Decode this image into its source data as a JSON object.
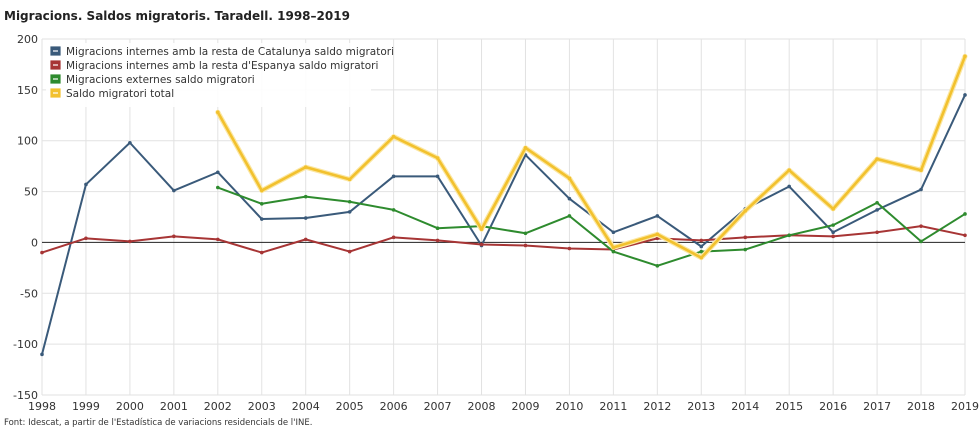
{
  "title": "Migracions. Saldos migratoris. Taradell. 1998–2019",
  "source": "Font: Idescat, a partir de l'Estadística de variacions residencials de l'INE.",
  "chart_data": {
    "type": "line",
    "title": "Migracions. Saldos migratoris. Taradell. 1998–2019",
    "x": [
      1998,
      1999,
      2000,
      2001,
      2002,
      2003,
      2004,
      2005,
      2006,
      2007,
      2008,
      2009,
      2010,
      2011,
      2012,
      2013,
      2014,
      2015,
      2016,
      2017,
      2018,
      2019
    ],
    "ylim": [
      -150,
      200
    ],
    "yticks": [
      -150,
      -100,
      -50,
      0,
      50,
      100,
      150,
      200
    ],
    "grid": true,
    "legend_position": "top-left",
    "series": [
      {
        "name": "Migracions internes amb la resta de Catalunya saldo migratori",
        "color": "#3a5a7a",
        "values": [
          -110,
          57,
          98,
          51,
          69,
          23,
          24,
          30,
          65,
          65,
          -3,
          86,
          43,
          10,
          26,
          -4,
          33,
          55,
          10,
          32,
          52,
          145
        ]
      },
      {
        "name": "Migracions internes amb la resta d'Espanya saldo migratori",
        "color": "#a73535",
        "values": [
          -10,
          4,
          1,
          6,
          3,
          -10,
          3,
          -9,
          5,
          2,
          -2,
          -3,
          -6,
          -7,
          4,
          2,
          5,
          7,
          6,
          10,
          16,
          7
        ]
      },
      {
        "name": "Migracions externes saldo migratori",
        "color": "#2e8b2e",
        "values": [
          null,
          null,
          null,
          null,
          54,
          38,
          45,
          40,
          32,
          14,
          16,
          9,
          26,
          -9,
          -23,
          -9,
          -7,
          7,
          17,
          39,
          1,
          28
        ]
      },
      {
        "name": "Saldo migratori total",
        "color": "#f2c12e",
        "values": [
          null,
          null,
          null,
          null,
          128,
          51,
          74,
          62,
          104,
          83,
          13,
          93,
          63,
          -5,
          8,
          -15,
          31,
          71,
          33,
          82,
          71,
          183
        ]
      }
    ]
  }
}
